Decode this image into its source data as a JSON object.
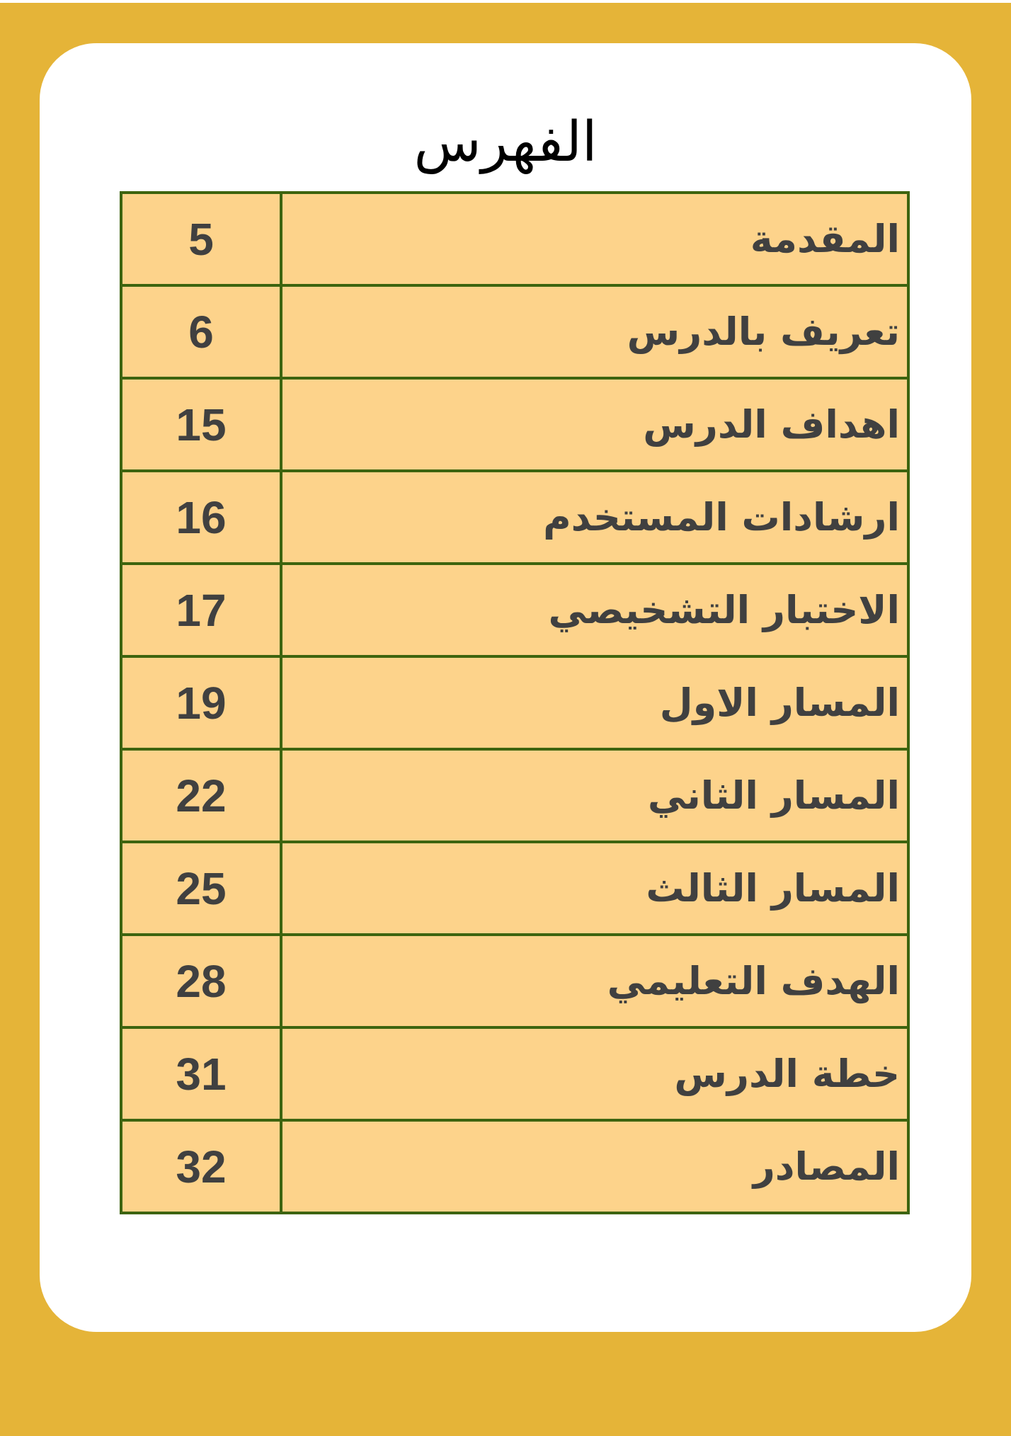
{
  "title": "الفهرس",
  "colors": {
    "background": "#e5b438",
    "card": "#ffffff",
    "cell_fill": "#fdd38b",
    "border": "#3d640f",
    "text": "#404040"
  },
  "rows": [
    {
      "label": "المقدمة",
      "page": "5"
    },
    {
      "label": "تعريف بالدرس",
      "page": "6"
    },
    {
      "label": "اهداف الدرس",
      "page": "15"
    },
    {
      "label": "ارشادات المستخدم",
      "page": "16"
    },
    {
      "label": "الاختبار التشخيصي",
      "page": "17"
    },
    {
      "label": "المسار الاول",
      "page": "19"
    },
    {
      "label": "المسار الثاني",
      "page": "22"
    },
    {
      "label": "المسار الثالث",
      "page": "25"
    },
    {
      "label": "الهدف التعليمي",
      "page": "28"
    },
    {
      "label": "خطة الدرس",
      "page": "31"
    },
    {
      "label": "المصادر",
      "page": "32"
    }
  ]
}
